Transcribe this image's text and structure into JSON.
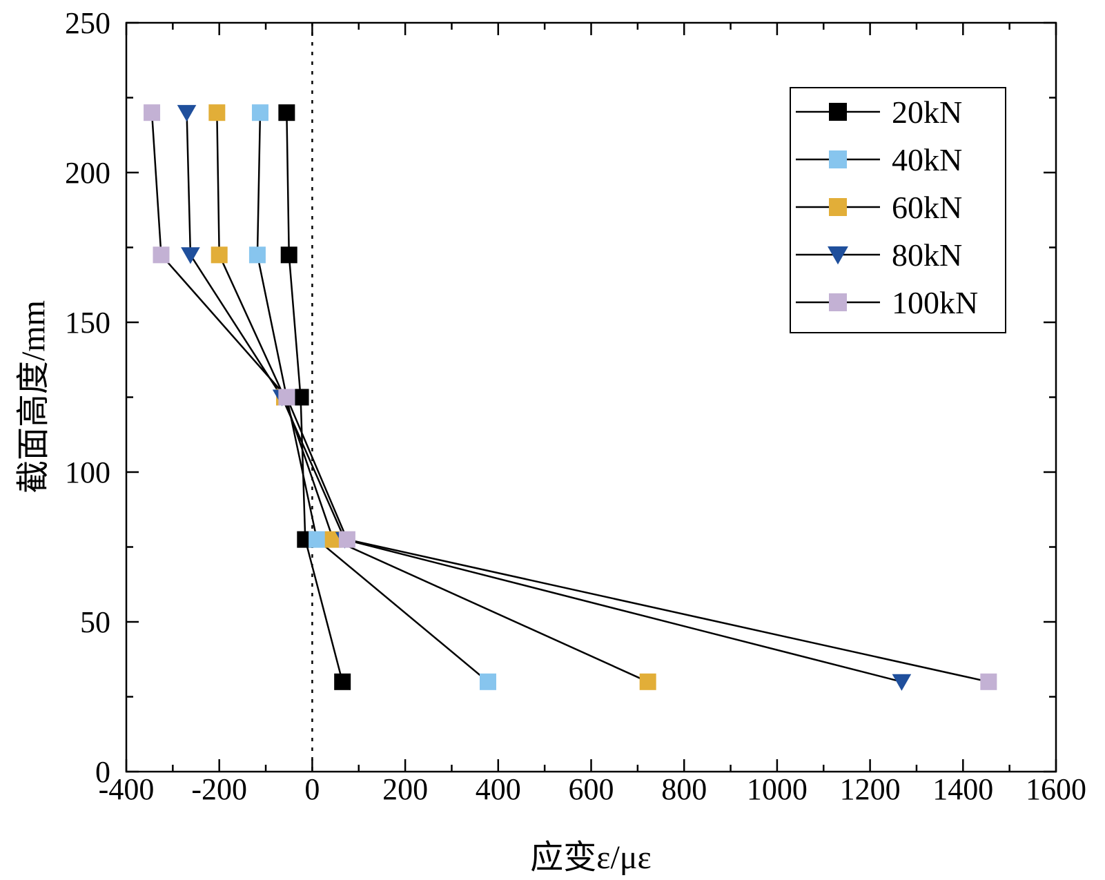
{
  "chart_data": {
    "type": "line",
    "title": "",
    "xlabel": "应变ε/με",
    "ylabel": "截面高度/mm",
    "xlim": [
      -400,
      1600
    ],
    "ylim": [
      0,
      250
    ],
    "x_ticks": [
      -400,
      -200,
      0,
      200,
      400,
      600,
      800,
      1000,
      1200,
      1400,
      1600
    ],
    "y_ticks": [
      0,
      50,
      100,
      150,
      200,
      250
    ],
    "x_tick_labels": [
      "-400",
      "-200",
      "0",
      "200",
      "400",
      "600",
      "800",
      "1000",
      "1200",
      "1400",
      "1600"
    ],
    "y_tick_labels": [
      "0",
      "50",
      "100",
      "150",
      "200",
      "250"
    ],
    "reference_line_x": 0,
    "legend_position": "top-right",
    "y": [
      30,
      77.5,
      125,
      172.5,
      220
    ],
    "series": [
      {
        "name": "20kN",
        "marker": "square",
        "color": "#000000",
        "x": [
          65,
          -15,
          -25,
          -50,
          -55
        ]
      },
      {
        "name": "40kN",
        "marker": "square",
        "color": "#87C5EE",
        "x": [
          378,
          10,
          -55,
          -118,
          -112
        ]
      },
      {
        "name": "60kN",
        "marker": "square",
        "color": "#E2AE38",
        "x": [
          722,
          45,
          -60,
          -200,
          -205
        ]
      },
      {
        "name": "80kN",
        "marker": "triangle-down",
        "color": "#1F4F9C",
        "x": [
          1268,
          70,
          -65,
          -262,
          -270
        ]
      },
      {
        "name": "100kN",
        "marker": "square",
        "color": "#C3B1D4",
        "x": [
          1455,
          75,
          -55,
          -325,
          -345
        ]
      }
    ]
  }
}
